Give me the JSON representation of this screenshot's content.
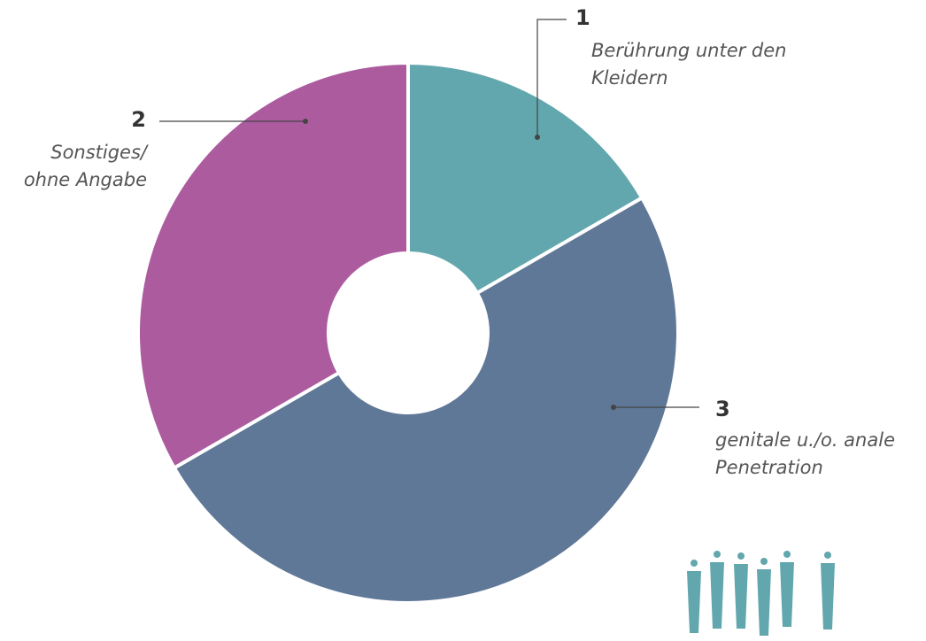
{
  "chart_data": {
    "type": "donut",
    "categories": [
      "Berührung unter den Kleidern",
      "genitale u./o. anale Penetration",
      "Sonstiges/ ohne Angabe"
    ],
    "values": [
      1,
      3,
      2
    ],
    "colors": [
      "#62a7ad",
      "#607897",
      "#ac5b9f"
    ]
  }
}
